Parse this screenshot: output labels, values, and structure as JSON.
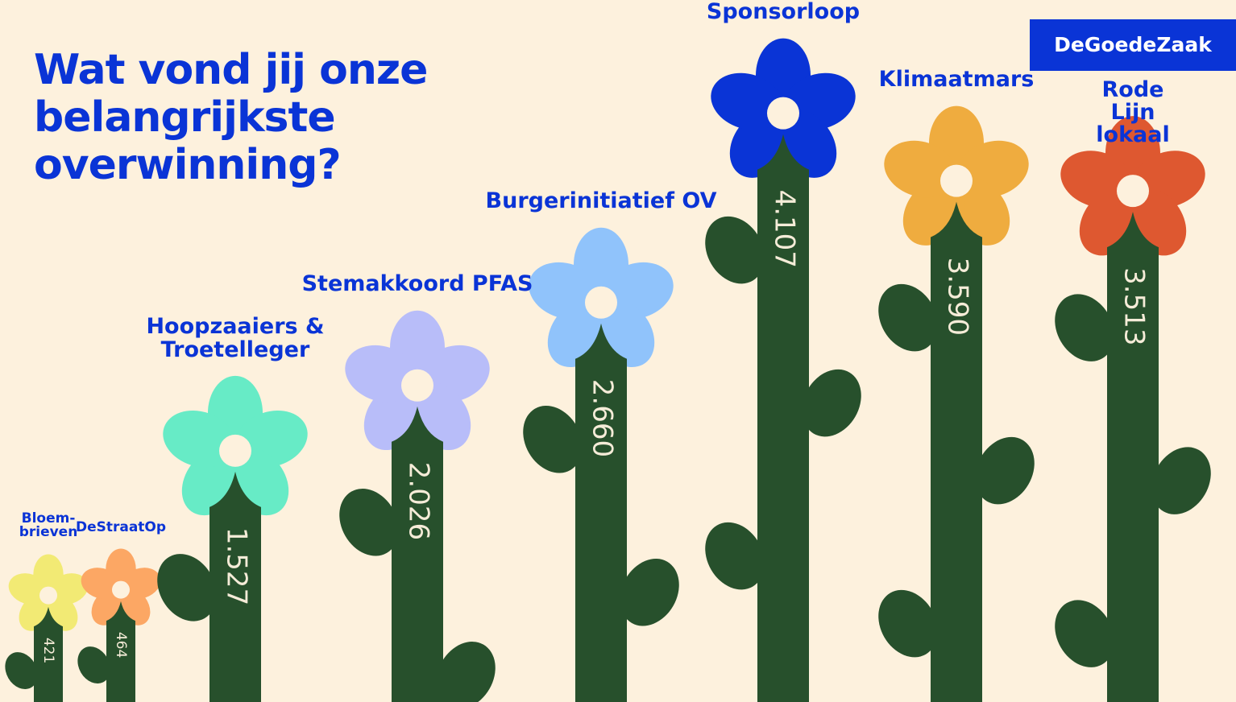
{
  "title": "Wat vond jij onze\nbelangrijkste\noverwinning?",
  "logo": "DeGoedeZaak",
  "chart_data": {
    "type": "bar",
    "categories": [
      "Bloem-\nbrieven",
      "DeStraatOp",
      "Hoopzaaiers &\nTroetelleger",
      "Stemakkoord PFAS",
      "Burgerinitiatief OV",
      "Sponsorloop",
      "Klimaatmars",
      "Rode Lijn lokaal"
    ],
    "values": [
      421,
      464,
      1527,
      2026,
      2660,
      4107,
      3590,
      3513
    ],
    "value_labels": [
      "421",
      "464",
      "1.527",
      "2.026",
      "2.660",
      "4.107",
      "3.590",
      "3.513"
    ],
    "colors": [
      "#f2ea74",
      "#fca764",
      "#67ebc6",
      "#b8bdf9",
      "#90c3fb",
      "#0a34d6",
      "#efac3f",
      "#de5830"
    ],
    "stem_color": "#27502c"
  }
}
